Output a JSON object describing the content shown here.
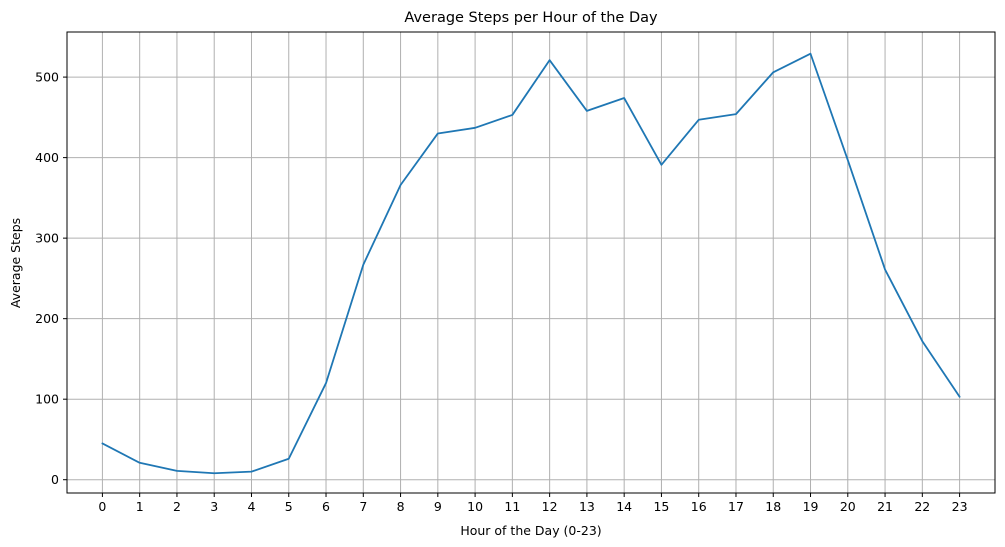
{
  "chart_data": {
    "type": "line",
    "title": "Average Steps per Hour of the Day",
    "xlabel": "Hour of the Day (0-23)",
    "ylabel": "Average Steps",
    "x": [
      0,
      1,
      2,
      3,
      4,
      5,
      6,
      7,
      8,
      9,
      10,
      11,
      12,
      13,
      14,
      15,
      16,
      17,
      18,
      19,
      20,
      21,
      22,
      23
    ],
    "x_ticks": [
      "0",
      "1",
      "2",
      "3",
      "4",
      "5",
      "6",
      "7",
      "8",
      "9",
      "10",
      "11",
      "12",
      "13",
      "14",
      "15",
      "16",
      "17",
      "18",
      "19",
      "20",
      "21",
      "22",
      "23"
    ],
    "y_ticks": [
      0,
      100,
      200,
      300,
      400,
      500
    ],
    "xlim": [
      -0.95,
      23.95
    ],
    "ylim": [
      -16.5,
      556
    ],
    "grid": true,
    "series": [
      {
        "color": "#1f77b4",
        "values": [
          45,
          21,
          11,
          8,
          10,
          26,
          120,
          267,
          366,
          430,
          437,
          453,
          521,
          458,
          474,
          391,
          447,
          454,
          506,
          529,
          397,
          261,
          172,
          103
        ]
      }
    ]
  }
}
